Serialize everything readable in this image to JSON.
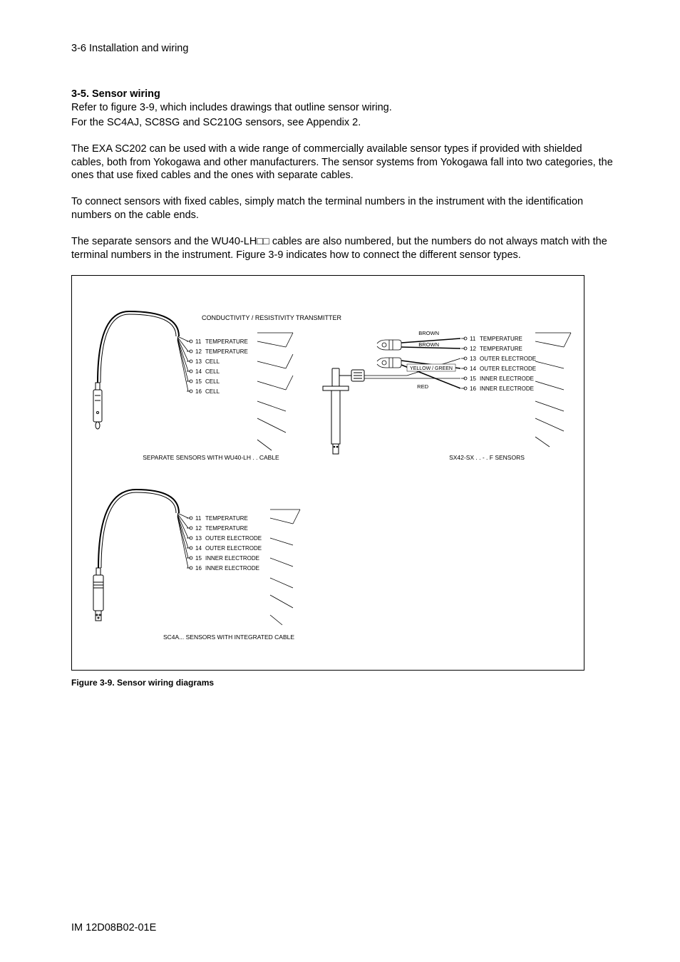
{
  "page_header": "3-6 Installation and wiring",
  "section_title": "3-5. Sensor wiring",
  "paragraphs": {
    "p1_l1": "Refer to figure 3-9, which includes drawings that outline sensor wiring.",
    "p1_l2": "For the SC4AJ, SC8SG and SC210G sensors, see Appendix 2.",
    "p2": "The EXA SC202 can be used with a wide range of commercially available sensor types if provided with shielded cables, both from Yokogawa and other manufacturers. The sensor systems from Yokogawa fall into two categories, the ones that use fixed cables and the ones with separate cables.",
    "p3": "To connect sensors with fixed cables, simply match the terminal numbers in the instrument with the identification numbers on the cable ends.",
    "p4": "The separate sensors and the WU40-LH□□ cables are also numbered, but the numbers do not always match with the terminal numbers in the instrument. Figure 3-9 indicates how to connect the different sensor types."
  },
  "diagram": {
    "transmitter_title": "CONDUCTIVITY / RESISTIVITY TRANSMITTER",
    "left_block": {
      "terminals": [
        {
          "num": "11",
          "label": "TEMPERATURE"
        },
        {
          "num": "12",
          "label": "TEMPERATURE"
        },
        {
          "num": "13",
          "label": "CELL"
        },
        {
          "num": "14",
          "label": "CELL"
        },
        {
          "num": "15",
          "label": "CELL"
        },
        {
          "num": "16",
          "label": "CELL"
        }
      ],
      "caption": "SEPARATE SENSORS  WITH WU40-LH . .   CABLE"
    },
    "right_block": {
      "terminals": [
        {
          "num": "11",
          "label": "TEMPERATURE",
          "color": "BROWN"
        },
        {
          "num": "12",
          "label": "TEMPERATURE",
          "color": "BROWN"
        },
        {
          "num": "13",
          "label": "OUTER ELECTRODE",
          "color": ""
        },
        {
          "num": "14",
          "label": "OUTER ELECTRODE",
          "color": "YELLOW / GREEN"
        },
        {
          "num": "15",
          "label": "INNER ELECTRODE",
          "color": ""
        },
        {
          "num": "16",
          "label": "INNER ELECTRODE",
          "color": "RED"
        }
      ],
      "caption": "SX42-SX . . - . F  SENSORS"
    },
    "bottom_block": {
      "terminals": [
        {
          "num": "11",
          "label": "TEMPERATURE"
        },
        {
          "num": "12",
          "label": "TEMPERATURE"
        },
        {
          "num": "13",
          "label": "OUTER ELECTRODE"
        },
        {
          "num": "14",
          "label": "OUTER ELECTRODE"
        },
        {
          "num": "15",
          "label": "INNER ELECTRODE"
        },
        {
          "num": "16",
          "label": "INNER ELECTRODE"
        }
      ],
      "caption": "SC4A... SENSORS WITH INTEGRATED CABLE"
    }
  },
  "figure_caption": "Figure 3-9. Sensor wiring diagrams",
  "footer": "IM 12D08B02-01E",
  "colors": {
    "text": "#000000",
    "bg": "#ffffff",
    "line": "#000000"
  },
  "layout": {
    "term_row_height": 14,
    "term_circle_r": 1.8,
    "font_tiny": 8
  }
}
